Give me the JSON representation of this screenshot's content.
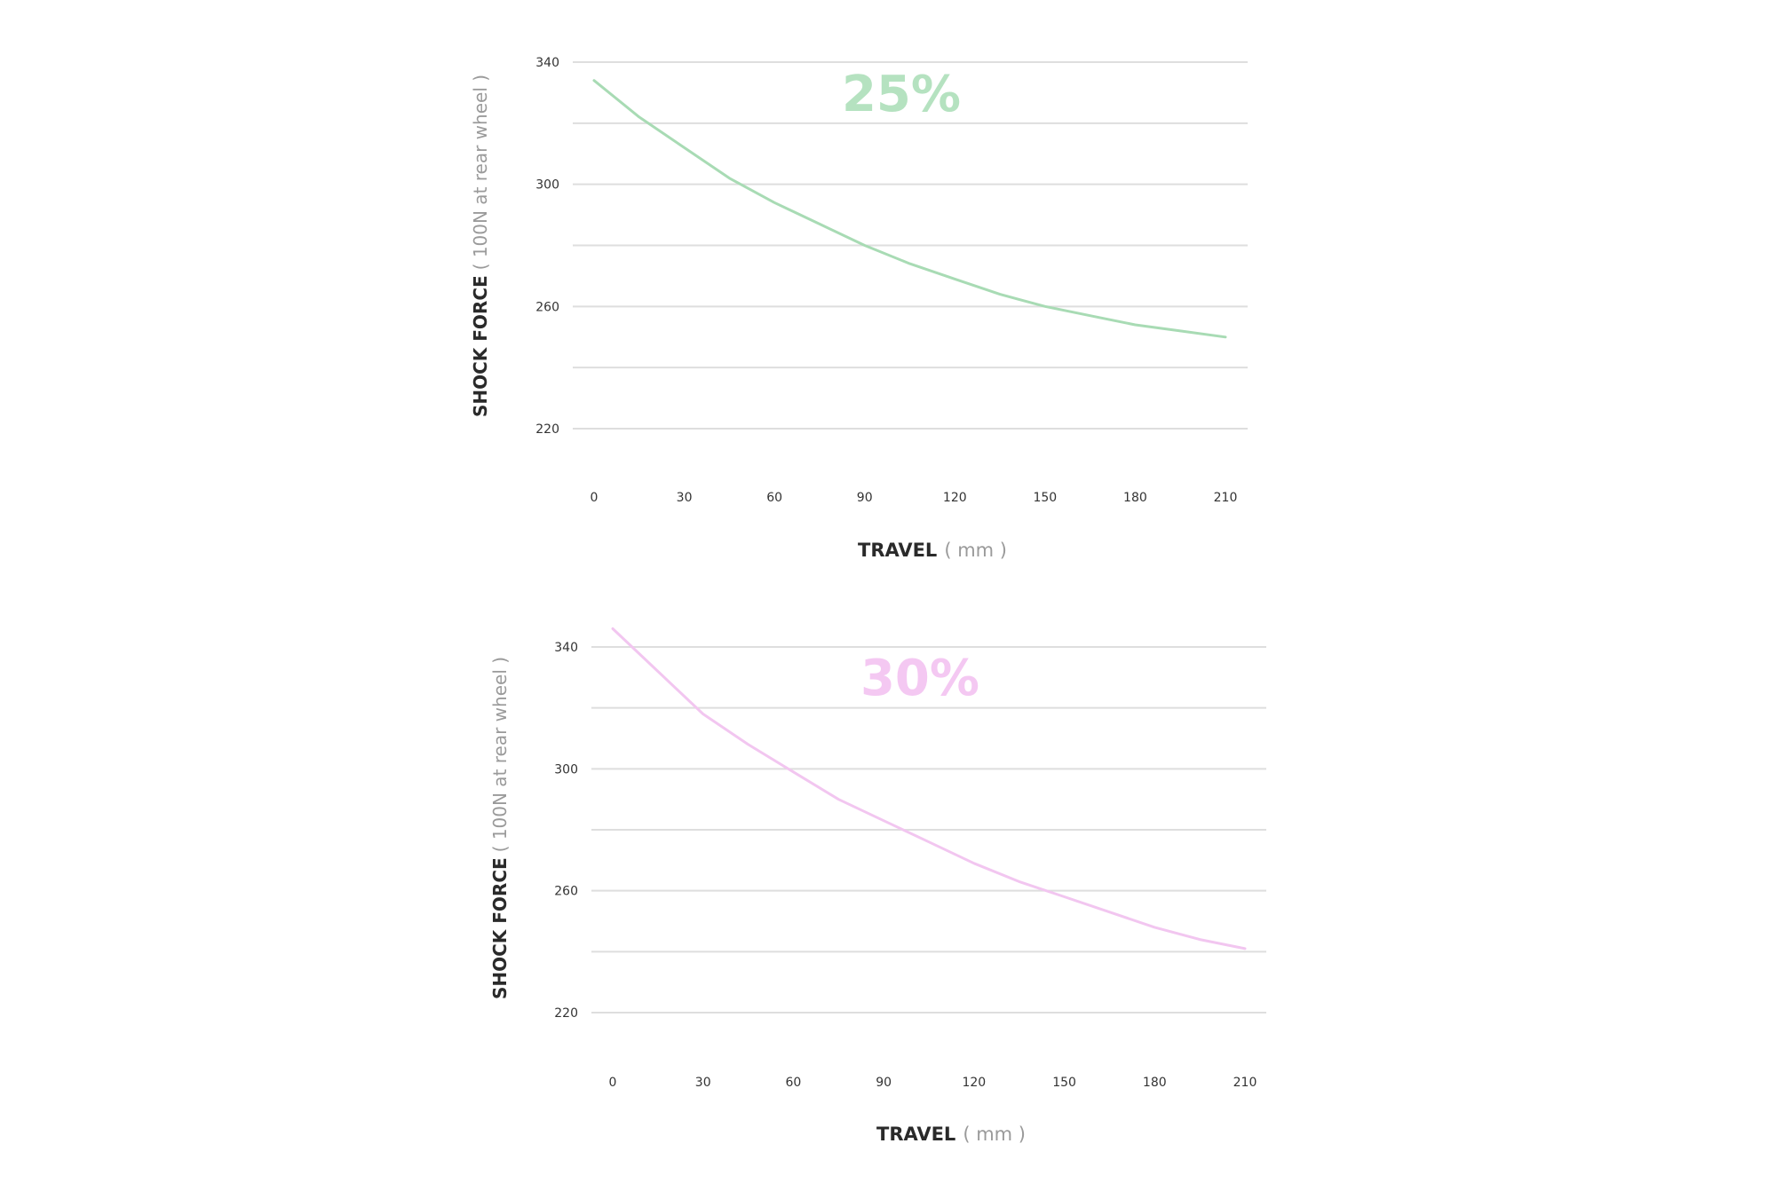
{
  "chart_data": [
    {
      "type": "line",
      "title": "25%",
      "ylabel": "SHOCK FORCE",
      "ylabel_unit": "( 100N at rear wheel )",
      "xlabel": "TRAVEL",
      "xlabel_unit": "( mm )",
      "xlim": [
        0,
        210
      ],
      "ylim": [
        220,
        340
      ],
      "xticks": [
        0,
        30,
        60,
        90,
        120,
        150,
        180,
        210
      ],
      "yticks": [
        340,
        300,
        260,
        220
      ],
      "grid": true,
      "color": "#a8dbb4",
      "title_color": "#b5e2c0",
      "series": [
        {
          "x": [
            0,
            15,
            30,
            45,
            60,
            75,
            90,
            105,
            120,
            135,
            150,
            165,
            180,
            195,
            210
          ],
          "y": [
            334,
            322,
            312,
            302,
            294,
            287,
            280,
            274,
            269,
            264,
            260,
            257,
            254,
            252,
            250
          ]
        }
      ]
    },
    {
      "type": "line",
      "title": "30%",
      "ylabel": "SHOCK FORCE",
      "ylabel_unit": "( 100N at rear wheel )",
      "xlabel": "TRAVEL",
      "xlabel_unit": "( mm )",
      "xlim": [
        0,
        210
      ],
      "ylim": [
        220,
        340
      ],
      "xticks": [
        0,
        30,
        60,
        90,
        120,
        150,
        180,
        210
      ],
      "yticks": [
        340,
        300,
        260,
        220
      ],
      "grid": true,
      "color": "#f2c6f0",
      "title_color": "#f4c8f2",
      "series": [
        {
          "x": [
            0,
            15,
            30,
            45,
            60,
            75,
            90,
            105,
            120,
            135,
            150,
            165,
            180,
            195,
            210
          ],
          "y": [
            346,
            332,
            318,
            308,
            299,
            290,
            283,
            276,
            269,
            263,
            258,
            253,
            248,
            244,
            241
          ]
        }
      ]
    }
  ]
}
